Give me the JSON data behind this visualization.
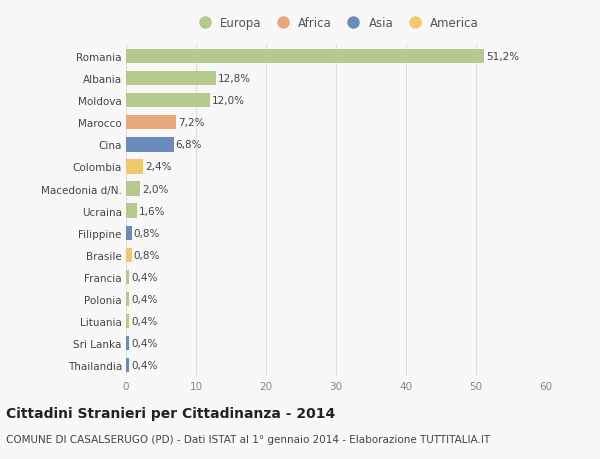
{
  "countries": [
    "Romania",
    "Albania",
    "Moldova",
    "Marocco",
    "Cina",
    "Colombia",
    "Macedonia d/N.",
    "Ucraina",
    "Filippine",
    "Brasile",
    "Francia",
    "Polonia",
    "Lituania",
    "Sri Lanka",
    "Thailandia"
  ],
  "values": [
    51.2,
    12.8,
    12.0,
    7.2,
    6.8,
    2.4,
    2.0,
    1.6,
    0.8,
    0.8,
    0.4,
    0.4,
    0.4,
    0.4,
    0.4
  ],
  "labels": [
    "51,2%",
    "12,8%",
    "12,0%",
    "7,2%",
    "6,8%",
    "2,4%",
    "2,0%",
    "1,6%",
    "0,8%",
    "0,8%",
    "0,4%",
    "0,4%",
    "0,4%",
    "0,4%",
    "0,4%"
  ],
  "colors": [
    "#b5c98e",
    "#b5c98e",
    "#b5c98e",
    "#e8a87c",
    "#6b8cba",
    "#f0c96e",
    "#b5c98e",
    "#b5c98e",
    "#6b8cba",
    "#f0c96e",
    "#b5c98e",
    "#b5c98e",
    "#b5c98e",
    "#6b8cba",
    "#6b8cba"
  ],
  "legend": [
    {
      "label": "Europa",
      "color": "#b5c98e"
    },
    {
      "label": "Africa",
      "color": "#e8a87c"
    },
    {
      "label": "Asia",
      "color": "#6b8cba"
    },
    {
      "label": "America",
      "color": "#f0c96e"
    }
  ],
  "xlim": [
    0,
    60
  ],
  "xticks": [
    0,
    10,
    20,
    30,
    40,
    50,
    60
  ],
  "title": "Cittadini Stranieri per Cittadinanza - 2014",
  "subtitle": "COMUNE DI CASALSERUGO (PD) - Dati ISTAT al 1° gennaio 2014 - Elaborazione TUTTITALIA.IT",
  "bg_color": "#f8f8f8",
  "grid_color": "#dddddd",
  "bar_height": 0.65,
  "label_fontsize": 7.5,
  "tick_fontsize": 7.5,
  "title_fontsize": 10,
  "subtitle_fontsize": 7.5
}
